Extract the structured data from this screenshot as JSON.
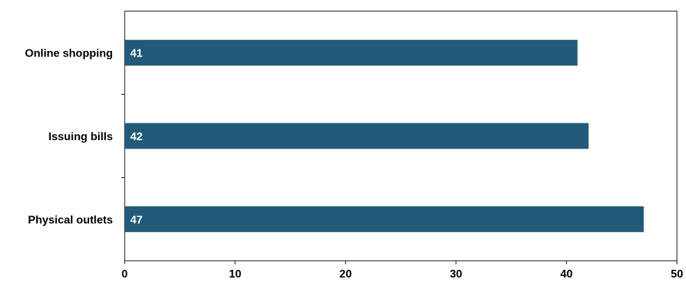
{
  "colors": {
    "bar": "#235a79",
    "axis": "#000000",
    "data_label": "#ffffff"
  },
  "chart_data": {
    "type": "bar",
    "orientation": "horizontal",
    "categories": [
      "Online shopping",
      "Issuing bills",
      "Physical outlets"
    ],
    "values": [
      41,
      42,
      47
    ],
    "data_labels": [
      "41",
      "42",
      "47"
    ],
    "x_ticks": [
      "0",
      "10",
      "20",
      "30",
      "40",
      "50"
    ],
    "xlim": [
      0,
      50
    ],
    "grid": false,
    "legend": "none",
    "title": "",
    "xlabel": "",
    "ylabel": ""
  }
}
